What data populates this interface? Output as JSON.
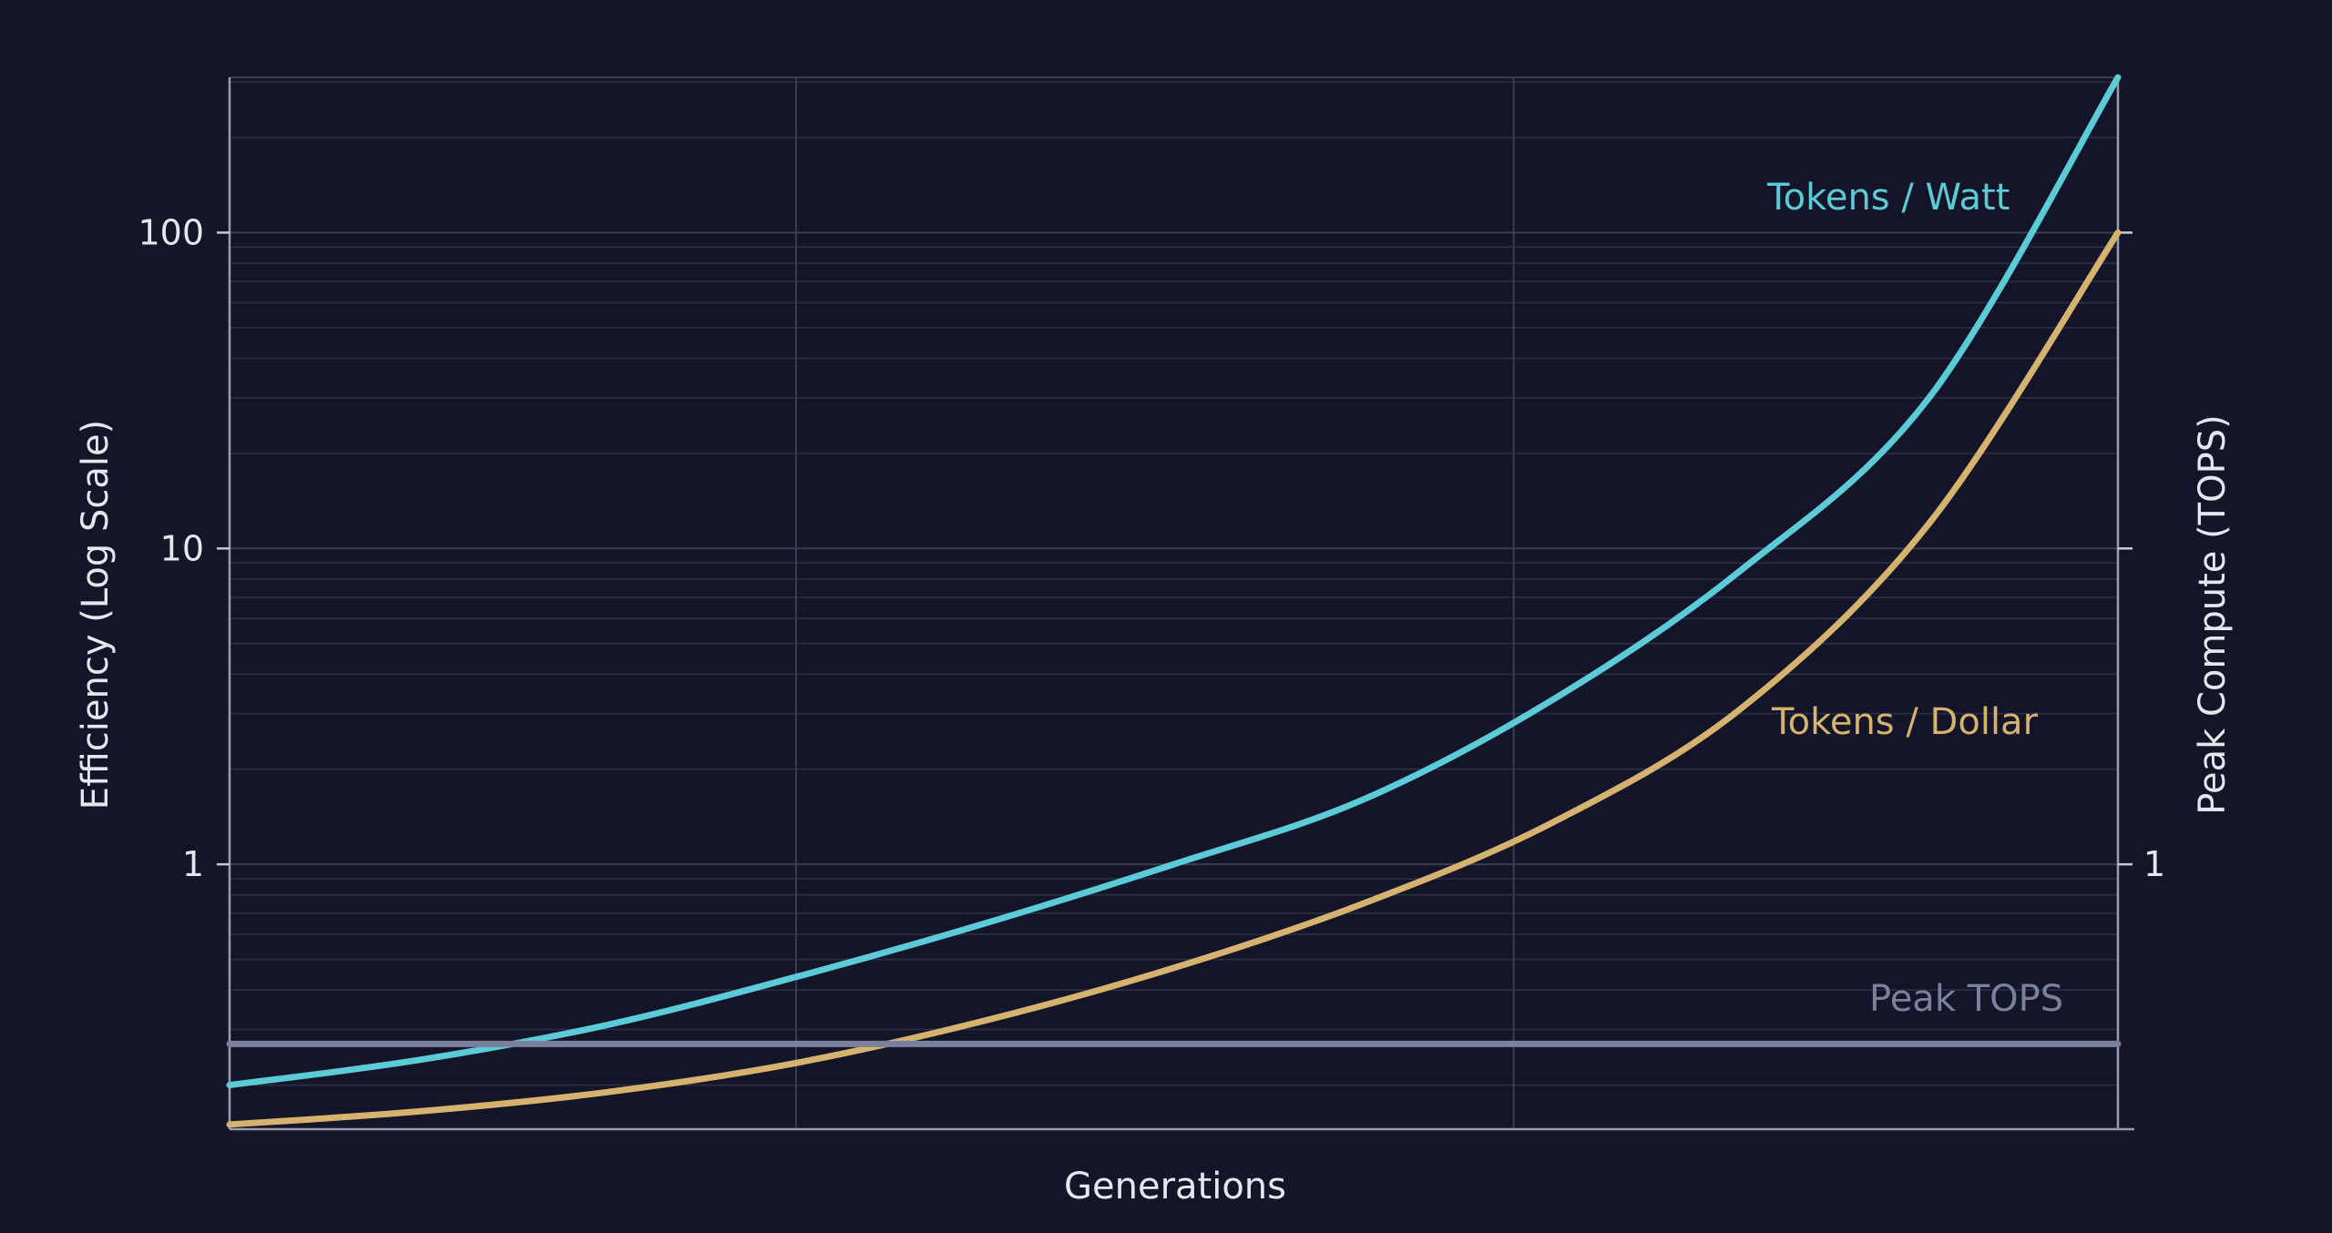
{
  "chart_data": {
    "type": "line",
    "title": "",
    "xlabel": "Generations",
    "ylabel": "Efficiency (Log Scale)",
    "y2label": "Peak Compute (TOPS)",
    "y_scale": "log",
    "ylim": [
      0.145,
      310
    ],
    "xlim": [
      0,
      1
    ],
    "y_ticks": [
      {
        "value": 100,
        "label": "100"
      },
      {
        "value": 10,
        "label": "10"
      },
      {
        "value": 1,
        "label": "1"
      }
    ],
    "y2_ticks": [
      {
        "value": 1,
        "label": "1"
      }
    ],
    "x_gridlines": [
      0.3,
      0.68
    ],
    "grid": true,
    "series": [
      {
        "name": "Tokens / Watt",
        "color": "#5ccbd8",
        "x": [
          0,
          0.1,
          0.2,
          0.3,
          0.4,
          0.5,
          0.6,
          0.7,
          0.8,
          0.9,
          1.0
        ],
        "y": [
          0.2,
          0.24,
          0.31,
          0.44,
          0.65,
          1.0,
          1.6,
          3.3,
          8.5,
          30,
          310
        ]
      },
      {
        "name": "Tokens / Dollar",
        "color": "#d6b26f",
        "x": [
          0,
          0.1,
          0.2,
          0.3,
          0.4,
          0.5,
          0.6,
          0.7,
          0.8,
          0.9,
          1.0
        ],
        "y": [
          0.15,
          0.165,
          0.19,
          0.235,
          0.32,
          0.47,
          0.75,
          1.35,
          3.1,
          12,
          100
        ]
      },
      {
        "name": "Peak TOPS",
        "color": "#7a819c",
        "axis": "right",
        "x": [
          0,
          1
        ],
        "y": [
          0.27,
          0.27
        ]
      }
    ]
  }
}
